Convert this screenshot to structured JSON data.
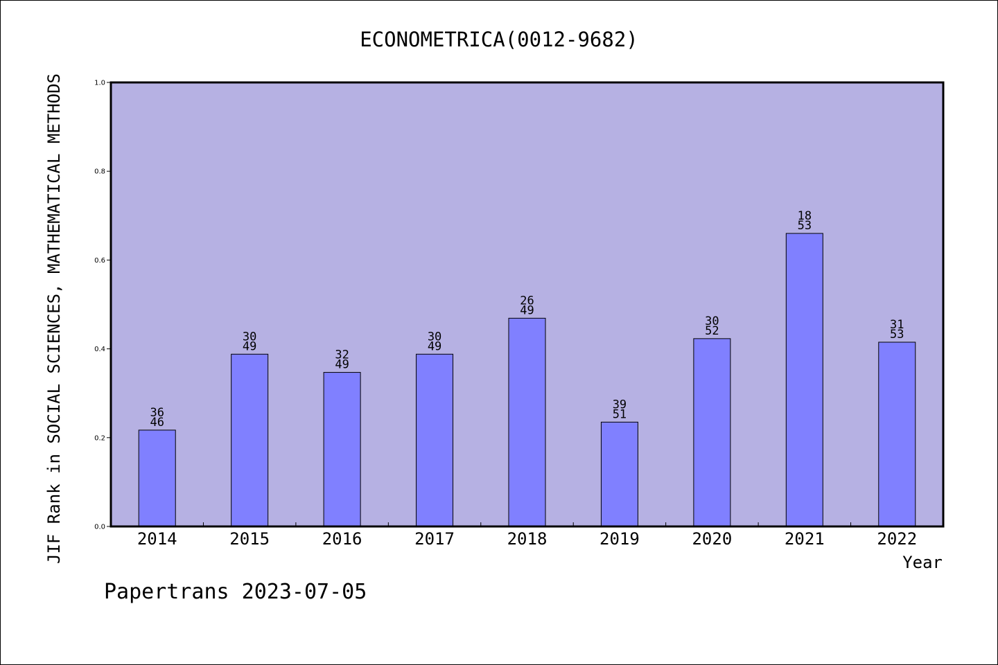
{
  "chart_data": {
    "type": "bar",
    "title": "ECONOMETRICA(0012-9682)",
    "xlabel": "Year",
    "ylabel": "JIF Rank in SOCIAL SCIENCES, MATHEMATICAL METHODS",
    "footer": "Papertrans 2023-07-05",
    "categories": [
      "2014",
      "2015",
      "2016",
      "2017",
      "2018",
      "2019",
      "2020",
      "2021",
      "2022"
    ],
    "values": [
      0.217,
      0.388,
      0.347,
      0.388,
      0.469,
      0.235,
      0.423,
      0.66,
      0.415
    ],
    "rank_labels": [
      {
        "rank": "36",
        "total": "46"
      },
      {
        "rank": "30",
        "total": "49"
      },
      {
        "rank": "32",
        "total": "49"
      },
      {
        "rank": "30",
        "total": "49"
      },
      {
        "rank": "26",
        "total": "49"
      },
      {
        "rank": "39",
        "total": "51"
      },
      {
        "rank": "30",
        "total": "52"
      },
      {
        "rank": "18",
        "total": "53"
      },
      {
        "rank": "31",
        "total": "53"
      }
    ],
    "ylim": [
      0.0,
      1.0
    ],
    "yticks": [
      "0.0",
      "0.2",
      "0.4",
      "0.6",
      "0.8",
      "1.0"
    ],
    "grid": false,
    "colors": {
      "plot_background": "#b6b1e3",
      "bar_fill": "#8080ff",
      "bar_stroke": "#000000",
      "axis": "#000000"
    }
  }
}
